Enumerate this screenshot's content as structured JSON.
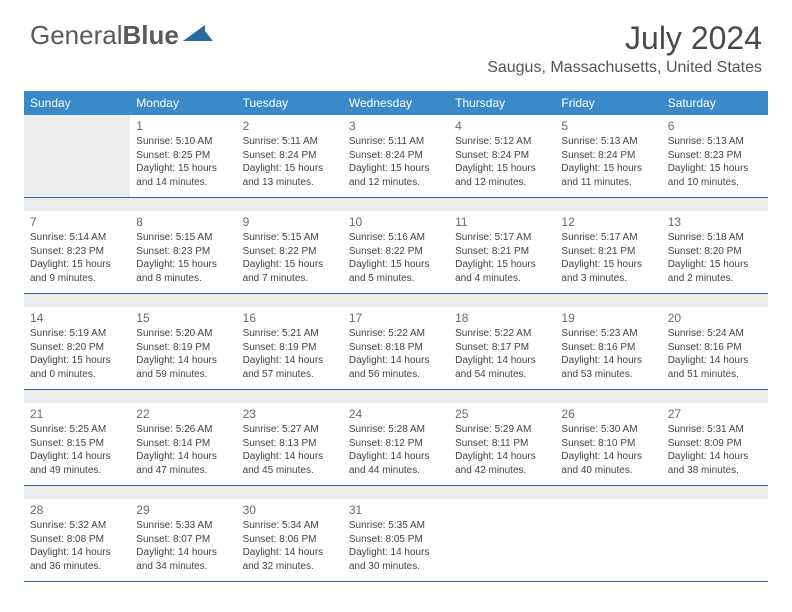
{
  "brand": {
    "part1": "General",
    "part2": "Blue"
  },
  "title": "July 2024",
  "location": "Saugus, Massachusetts, United States",
  "theme": {
    "header_bg": "#3a89c9",
    "border": "#2a6aa0",
    "text": "#444444"
  },
  "days_of_week": [
    "Sunday",
    "Monday",
    "Tuesday",
    "Wednesday",
    "Thursday",
    "Friday",
    "Saturday"
  ],
  "weeks": [
    [
      null,
      {
        "n": "1",
        "sr": "Sunrise: 5:10 AM",
        "ss": "Sunset: 8:25 PM",
        "d1": "Daylight: 15 hours",
        "d2": "and 14 minutes."
      },
      {
        "n": "2",
        "sr": "Sunrise: 5:11 AM",
        "ss": "Sunset: 8:24 PM",
        "d1": "Daylight: 15 hours",
        "d2": "and 13 minutes."
      },
      {
        "n": "3",
        "sr": "Sunrise: 5:11 AM",
        "ss": "Sunset: 8:24 PM",
        "d1": "Daylight: 15 hours",
        "d2": "and 12 minutes."
      },
      {
        "n": "4",
        "sr": "Sunrise: 5:12 AM",
        "ss": "Sunset: 8:24 PM",
        "d1": "Daylight: 15 hours",
        "d2": "and 12 minutes."
      },
      {
        "n": "5",
        "sr": "Sunrise: 5:13 AM",
        "ss": "Sunset: 8:24 PM",
        "d1": "Daylight: 15 hours",
        "d2": "and 11 minutes."
      },
      {
        "n": "6",
        "sr": "Sunrise: 5:13 AM",
        "ss": "Sunset: 8:23 PM",
        "d1": "Daylight: 15 hours",
        "d2": "and 10 minutes."
      }
    ],
    [
      {
        "n": "7",
        "sr": "Sunrise: 5:14 AM",
        "ss": "Sunset: 8:23 PM",
        "d1": "Daylight: 15 hours",
        "d2": "and 9 minutes."
      },
      {
        "n": "8",
        "sr": "Sunrise: 5:15 AM",
        "ss": "Sunset: 8:23 PM",
        "d1": "Daylight: 15 hours",
        "d2": "and 8 minutes."
      },
      {
        "n": "9",
        "sr": "Sunrise: 5:15 AM",
        "ss": "Sunset: 8:22 PM",
        "d1": "Daylight: 15 hours",
        "d2": "and 7 minutes."
      },
      {
        "n": "10",
        "sr": "Sunrise: 5:16 AM",
        "ss": "Sunset: 8:22 PM",
        "d1": "Daylight: 15 hours",
        "d2": "and 5 minutes."
      },
      {
        "n": "11",
        "sr": "Sunrise: 5:17 AM",
        "ss": "Sunset: 8:21 PM",
        "d1": "Daylight: 15 hours",
        "d2": "and 4 minutes."
      },
      {
        "n": "12",
        "sr": "Sunrise: 5:17 AM",
        "ss": "Sunset: 8:21 PM",
        "d1": "Daylight: 15 hours",
        "d2": "and 3 minutes."
      },
      {
        "n": "13",
        "sr": "Sunrise: 5:18 AM",
        "ss": "Sunset: 8:20 PM",
        "d1": "Daylight: 15 hours",
        "d2": "and 2 minutes."
      }
    ],
    [
      {
        "n": "14",
        "sr": "Sunrise: 5:19 AM",
        "ss": "Sunset: 8:20 PM",
        "d1": "Daylight: 15 hours",
        "d2": "and 0 minutes."
      },
      {
        "n": "15",
        "sr": "Sunrise: 5:20 AM",
        "ss": "Sunset: 8:19 PM",
        "d1": "Daylight: 14 hours",
        "d2": "and 59 minutes."
      },
      {
        "n": "16",
        "sr": "Sunrise: 5:21 AM",
        "ss": "Sunset: 8:19 PM",
        "d1": "Daylight: 14 hours",
        "d2": "and 57 minutes."
      },
      {
        "n": "17",
        "sr": "Sunrise: 5:22 AM",
        "ss": "Sunset: 8:18 PM",
        "d1": "Daylight: 14 hours",
        "d2": "and 56 minutes."
      },
      {
        "n": "18",
        "sr": "Sunrise: 5:22 AM",
        "ss": "Sunset: 8:17 PM",
        "d1": "Daylight: 14 hours",
        "d2": "and 54 minutes."
      },
      {
        "n": "19",
        "sr": "Sunrise: 5:23 AM",
        "ss": "Sunset: 8:16 PM",
        "d1": "Daylight: 14 hours",
        "d2": "and 53 minutes."
      },
      {
        "n": "20",
        "sr": "Sunrise: 5:24 AM",
        "ss": "Sunset: 8:16 PM",
        "d1": "Daylight: 14 hours",
        "d2": "and 51 minutes."
      }
    ],
    [
      {
        "n": "21",
        "sr": "Sunrise: 5:25 AM",
        "ss": "Sunset: 8:15 PM",
        "d1": "Daylight: 14 hours",
        "d2": "and 49 minutes."
      },
      {
        "n": "22",
        "sr": "Sunrise: 5:26 AM",
        "ss": "Sunset: 8:14 PM",
        "d1": "Daylight: 14 hours",
        "d2": "and 47 minutes."
      },
      {
        "n": "23",
        "sr": "Sunrise: 5:27 AM",
        "ss": "Sunset: 8:13 PM",
        "d1": "Daylight: 14 hours",
        "d2": "and 45 minutes."
      },
      {
        "n": "24",
        "sr": "Sunrise: 5:28 AM",
        "ss": "Sunset: 8:12 PM",
        "d1": "Daylight: 14 hours",
        "d2": "and 44 minutes."
      },
      {
        "n": "25",
        "sr": "Sunrise: 5:29 AM",
        "ss": "Sunset: 8:11 PM",
        "d1": "Daylight: 14 hours",
        "d2": "and 42 minutes."
      },
      {
        "n": "26",
        "sr": "Sunrise: 5:30 AM",
        "ss": "Sunset: 8:10 PM",
        "d1": "Daylight: 14 hours",
        "d2": "and 40 minutes."
      },
      {
        "n": "27",
        "sr": "Sunrise: 5:31 AM",
        "ss": "Sunset: 8:09 PM",
        "d1": "Daylight: 14 hours",
        "d2": "and 38 minutes."
      }
    ],
    [
      {
        "n": "28",
        "sr": "Sunrise: 5:32 AM",
        "ss": "Sunset: 8:08 PM",
        "d1": "Daylight: 14 hours",
        "d2": "and 36 minutes."
      },
      {
        "n": "29",
        "sr": "Sunrise: 5:33 AM",
        "ss": "Sunset: 8:07 PM",
        "d1": "Daylight: 14 hours",
        "d2": "and 34 minutes."
      },
      {
        "n": "30",
        "sr": "Sunrise: 5:34 AM",
        "ss": "Sunset: 8:06 PM",
        "d1": "Daylight: 14 hours",
        "d2": "and 32 minutes."
      },
      {
        "n": "31",
        "sr": "Sunrise: 5:35 AM",
        "ss": "Sunset: 8:05 PM",
        "d1": "Daylight: 14 hours",
        "d2": "and 30 minutes."
      },
      null,
      null,
      null
    ]
  ]
}
